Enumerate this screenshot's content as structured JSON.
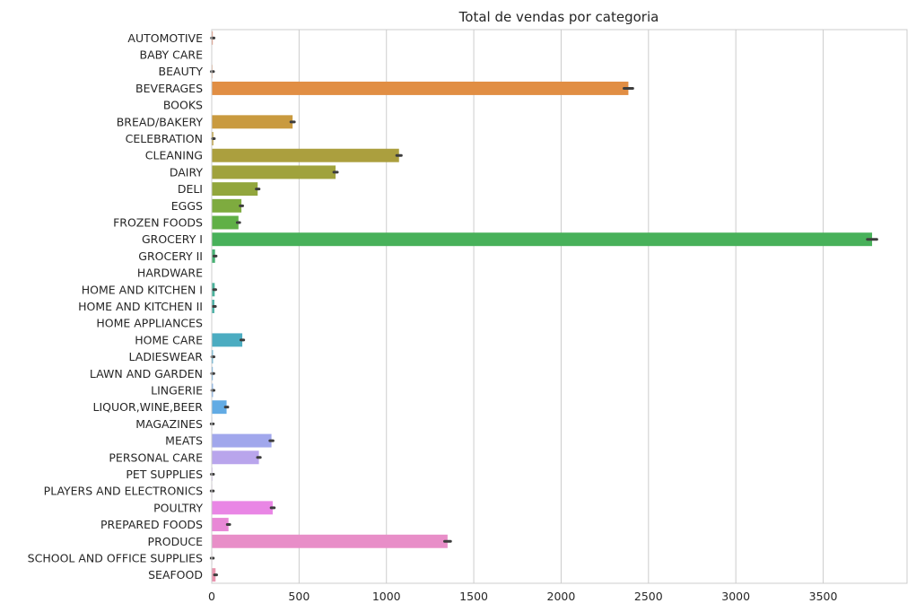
{
  "chart_data": {
    "type": "bar",
    "orientation": "horizontal",
    "title": "Total de vendas por categoria",
    "xlabel": "",
    "ylabel": "",
    "xlim": [
      0,
      3980
    ],
    "xticks": [
      0,
      500,
      1000,
      1500,
      2000,
      2500,
      3000,
      3500
    ],
    "grid": "vertical",
    "categories": [
      "AUTOMOTIVE",
      "BABY CARE",
      "BEAUTY",
      "BEVERAGES",
      "BOOKS",
      "BREAD/BAKERY",
      "CELEBRATION",
      "CLEANING",
      "DAIRY",
      "DELI",
      "EGGS",
      "FROZEN FOODS",
      "GROCERY I",
      "GROCERY II",
      "HARDWARE",
      "HOME AND KITCHEN I",
      "HOME AND KITCHEN II",
      "HOME APPLIANCES",
      "HOME CARE",
      "LADIESWEAR",
      "LAWN AND GARDEN",
      "LINGERIE",
      "LIQUOR,WINE,BEER",
      "MAGAZINES",
      "MEATS",
      "PERSONAL CARE",
      "PET SUPPLIES",
      "PLAYERS AND ELECTRONICS",
      "POULTRY",
      "PREPARED FOODS",
      "PRODUCE",
      "SCHOOL AND OFFICE SUPPLIES",
      "SEAFOOD"
    ],
    "values": [
      6,
      0.2,
      4,
      2385,
      0.1,
      463,
      9,
      1072,
      709,
      263,
      170,
      153,
      3780,
      19,
      1.1,
      17,
      15,
      0.5,
      175,
      7,
      6,
      7,
      85,
      3,
      342,
      270,
      4,
      3,
      349,
      96,
      1350,
      3,
      22
    ],
    "error_bars": [
      2,
      0.2,
      1,
      20,
      0.1,
      5,
      1,
      8,
      5,
      3,
      2,
      2,
      22,
      1,
      0.2,
      1,
      1,
      0.1,
      3,
      1,
      1,
      1,
      2,
      1,
      4,
      3,
      1,
      1,
      4,
      2,
      12,
      1,
      1
    ],
    "colors": [
      "#e5876c",
      "#e4896a",
      "#e38b55",
      "#e18e44",
      "#d69640",
      "#c99a3f",
      "#bb9e3d",
      "#ab9f3e",
      "#a0a23c",
      "#92a63d",
      "#7eab3f",
      "#60b046",
      "#48b15a",
      "#47b173",
      "#48b28a",
      "#4ab29b",
      "#4bb1a6",
      "#4bb0b3",
      "#4bacc1",
      "#4ba9d0",
      "#5ea7e1",
      "#6da6e8",
      "#62abe4",
      "#8fa5eb",
      "#a1a7ec",
      "#b9a5ec",
      "#c6a3ec",
      "#dd93ea",
      "#e986e5",
      "#e888d6",
      "#e88ec8",
      "#e892bb",
      "#e993ae"
    ]
  }
}
